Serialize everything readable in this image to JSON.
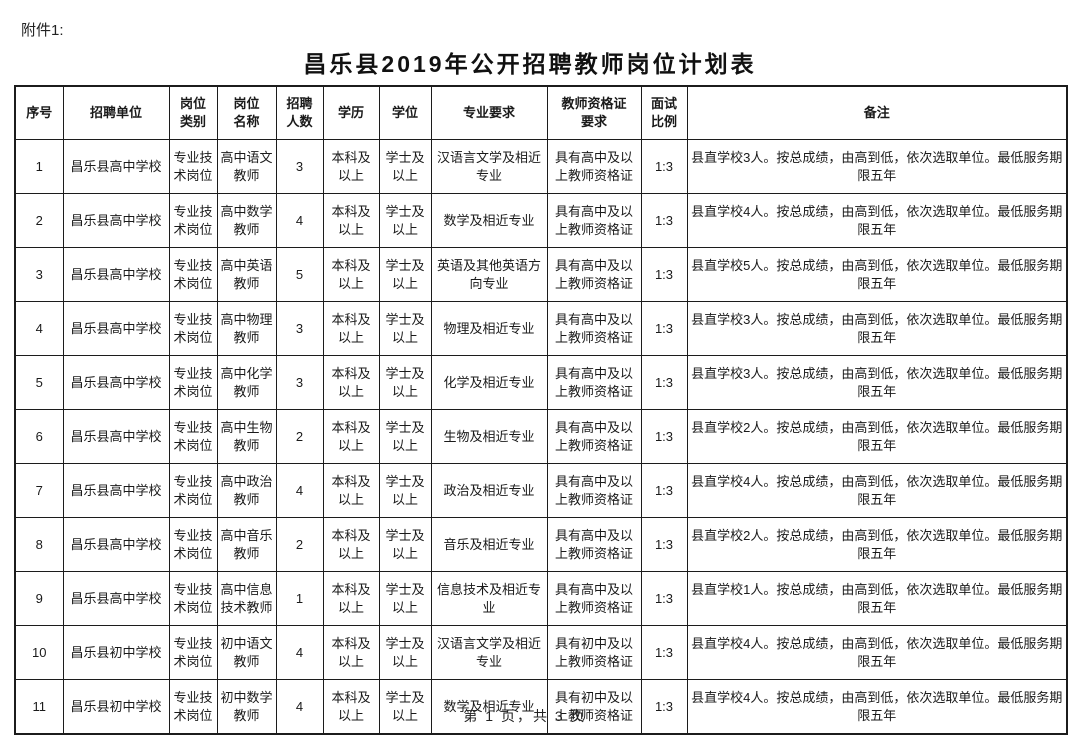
{
  "document": {
    "attachment_label": "附件1:",
    "title": "昌乐县2019年公开招聘教师岗位计划表",
    "page_footer": "第 1 页，共 3 页"
  },
  "table": {
    "headers": [
      "序号",
      "招聘单位",
      "岗位\n类别",
      "岗位\n名称",
      "招聘\n人数",
      "学历",
      "学位",
      "专业要求",
      "教师资格证\n要求",
      "面试\n比例",
      "备注"
    ],
    "rows": [
      [
        "1",
        "昌乐县高中学校",
        "专业技术岗位",
        "高中语文教师",
        "3",
        "本科及以上",
        "学士及以上",
        "汉语言文学及相近专业",
        "具有高中及以上教师资格证",
        "1:3",
        "县直学校3人。按总成绩，由高到低，依次选取单位。最低服务期限五年"
      ],
      [
        "2",
        "昌乐县高中学校",
        "专业技术岗位",
        "高中数学教师",
        "4",
        "本科及以上",
        "学士及以上",
        "数学及相近专业",
        "具有高中及以上教师资格证",
        "1:3",
        "县直学校4人。按总成绩，由高到低，依次选取单位。最低服务期限五年"
      ],
      [
        "3",
        "昌乐县高中学校",
        "专业技术岗位",
        "高中英语教师",
        "5",
        "本科及以上",
        "学士及以上",
        "英语及其他英语方向专业",
        "具有高中及以上教师资格证",
        "1:3",
        "县直学校5人。按总成绩，由高到低，依次选取单位。最低服务期限五年"
      ],
      [
        "4",
        "昌乐县高中学校",
        "专业技术岗位",
        "高中物理教师",
        "3",
        "本科及以上",
        "学士及以上",
        "物理及相近专业",
        "具有高中及以上教师资格证",
        "1:3",
        "县直学校3人。按总成绩，由高到低，依次选取单位。最低服务期限五年"
      ],
      [
        "5",
        "昌乐县高中学校",
        "专业技术岗位",
        "高中化学教师",
        "3",
        "本科及以上",
        "学士及以上",
        "化学及相近专业",
        "具有高中及以上教师资格证",
        "1:3",
        "县直学校3人。按总成绩，由高到低，依次选取单位。最低服务期限五年"
      ],
      [
        "6",
        "昌乐县高中学校",
        "专业技术岗位",
        "高中生物教师",
        "2",
        "本科及以上",
        "学士及以上",
        "生物及相近专业",
        "具有高中及以上教师资格证",
        "1:3",
        "县直学校2人。按总成绩，由高到低，依次选取单位。最低服务期限五年"
      ],
      [
        "7",
        "昌乐县高中学校",
        "专业技术岗位",
        "高中政治教师",
        "4",
        "本科及以上",
        "学士及以上",
        "政治及相近专业",
        "具有高中及以上教师资格证",
        "1:3",
        "县直学校4人。按总成绩，由高到低，依次选取单位。最低服务期限五年"
      ],
      [
        "8",
        "昌乐县高中学校",
        "专业技术岗位",
        "高中音乐教师",
        "2",
        "本科及以上",
        "学士及以上",
        "音乐及相近专业",
        "具有高中及以上教师资格证",
        "1:3",
        "县直学校2人。按总成绩，由高到低，依次选取单位。最低服务期限五年"
      ],
      [
        "9",
        "昌乐县高中学校",
        "专业技术岗位",
        "高中信息技术教师",
        "1",
        "本科及以上",
        "学士及以上",
        "信息技术及相近专业",
        "具有高中及以上教师资格证",
        "1:3",
        "县直学校1人。按总成绩，由高到低，依次选取单位。最低服务期限五年"
      ],
      [
        "10",
        "昌乐县初中学校",
        "专业技术岗位",
        "初中语文教师",
        "4",
        "本科及以上",
        "学士及以上",
        "汉语言文学及相近专业",
        "具有初中及以上教师资格证",
        "1:3",
        "县直学校4人。按总成绩，由高到低，依次选取单位。最低服务期限五年"
      ],
      [
        "11",
        "昌乐县初中学校",
        "专业技术岗位",
        "初中数学教师",
        "4",
        "本科及以上",
        "学士及以上",
        "数学及相近专业",
        "具有初中及以上教师资格证",
        "1:3",
        "县直学校4人。按总成绩，由高到低，依次选取单位。最低服务期限五年"
      ]
    ]
  }
}
